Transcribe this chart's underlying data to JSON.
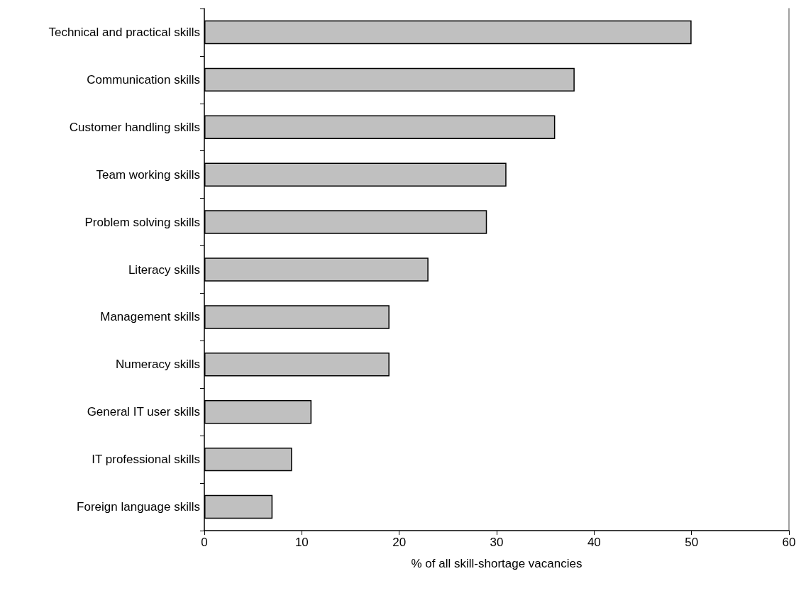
{
  "chart_data": {
    "type": "bar",
    "orientation": "horizontal",
    "xlabel": "% of all skill-shortage vacancies",
    "categories": [
      "Technical and practical skills",
      "Communication skills",
      "Customer handling skills",
      "Team working skills",
      "Problem solving skills",
      "Literacy skills",
      "Management skills",
      "Numeracy skills",
      "General IT user skills",
      "IT professional skills",
      "Foreign language skills"
    ],
    "values": [
      50,
      38,
      36,
      31,
      29,
      23,
      19,
      19,
      11,
      9,
      7
    ],
    "color": "#c0c0c0",
    "xlim": [
      0,
      60
    ],
    "xticks": [
      0,
      10,
      20,
      30,
      40,
      50,
      60
    ],
    "grid": false
  }
}
